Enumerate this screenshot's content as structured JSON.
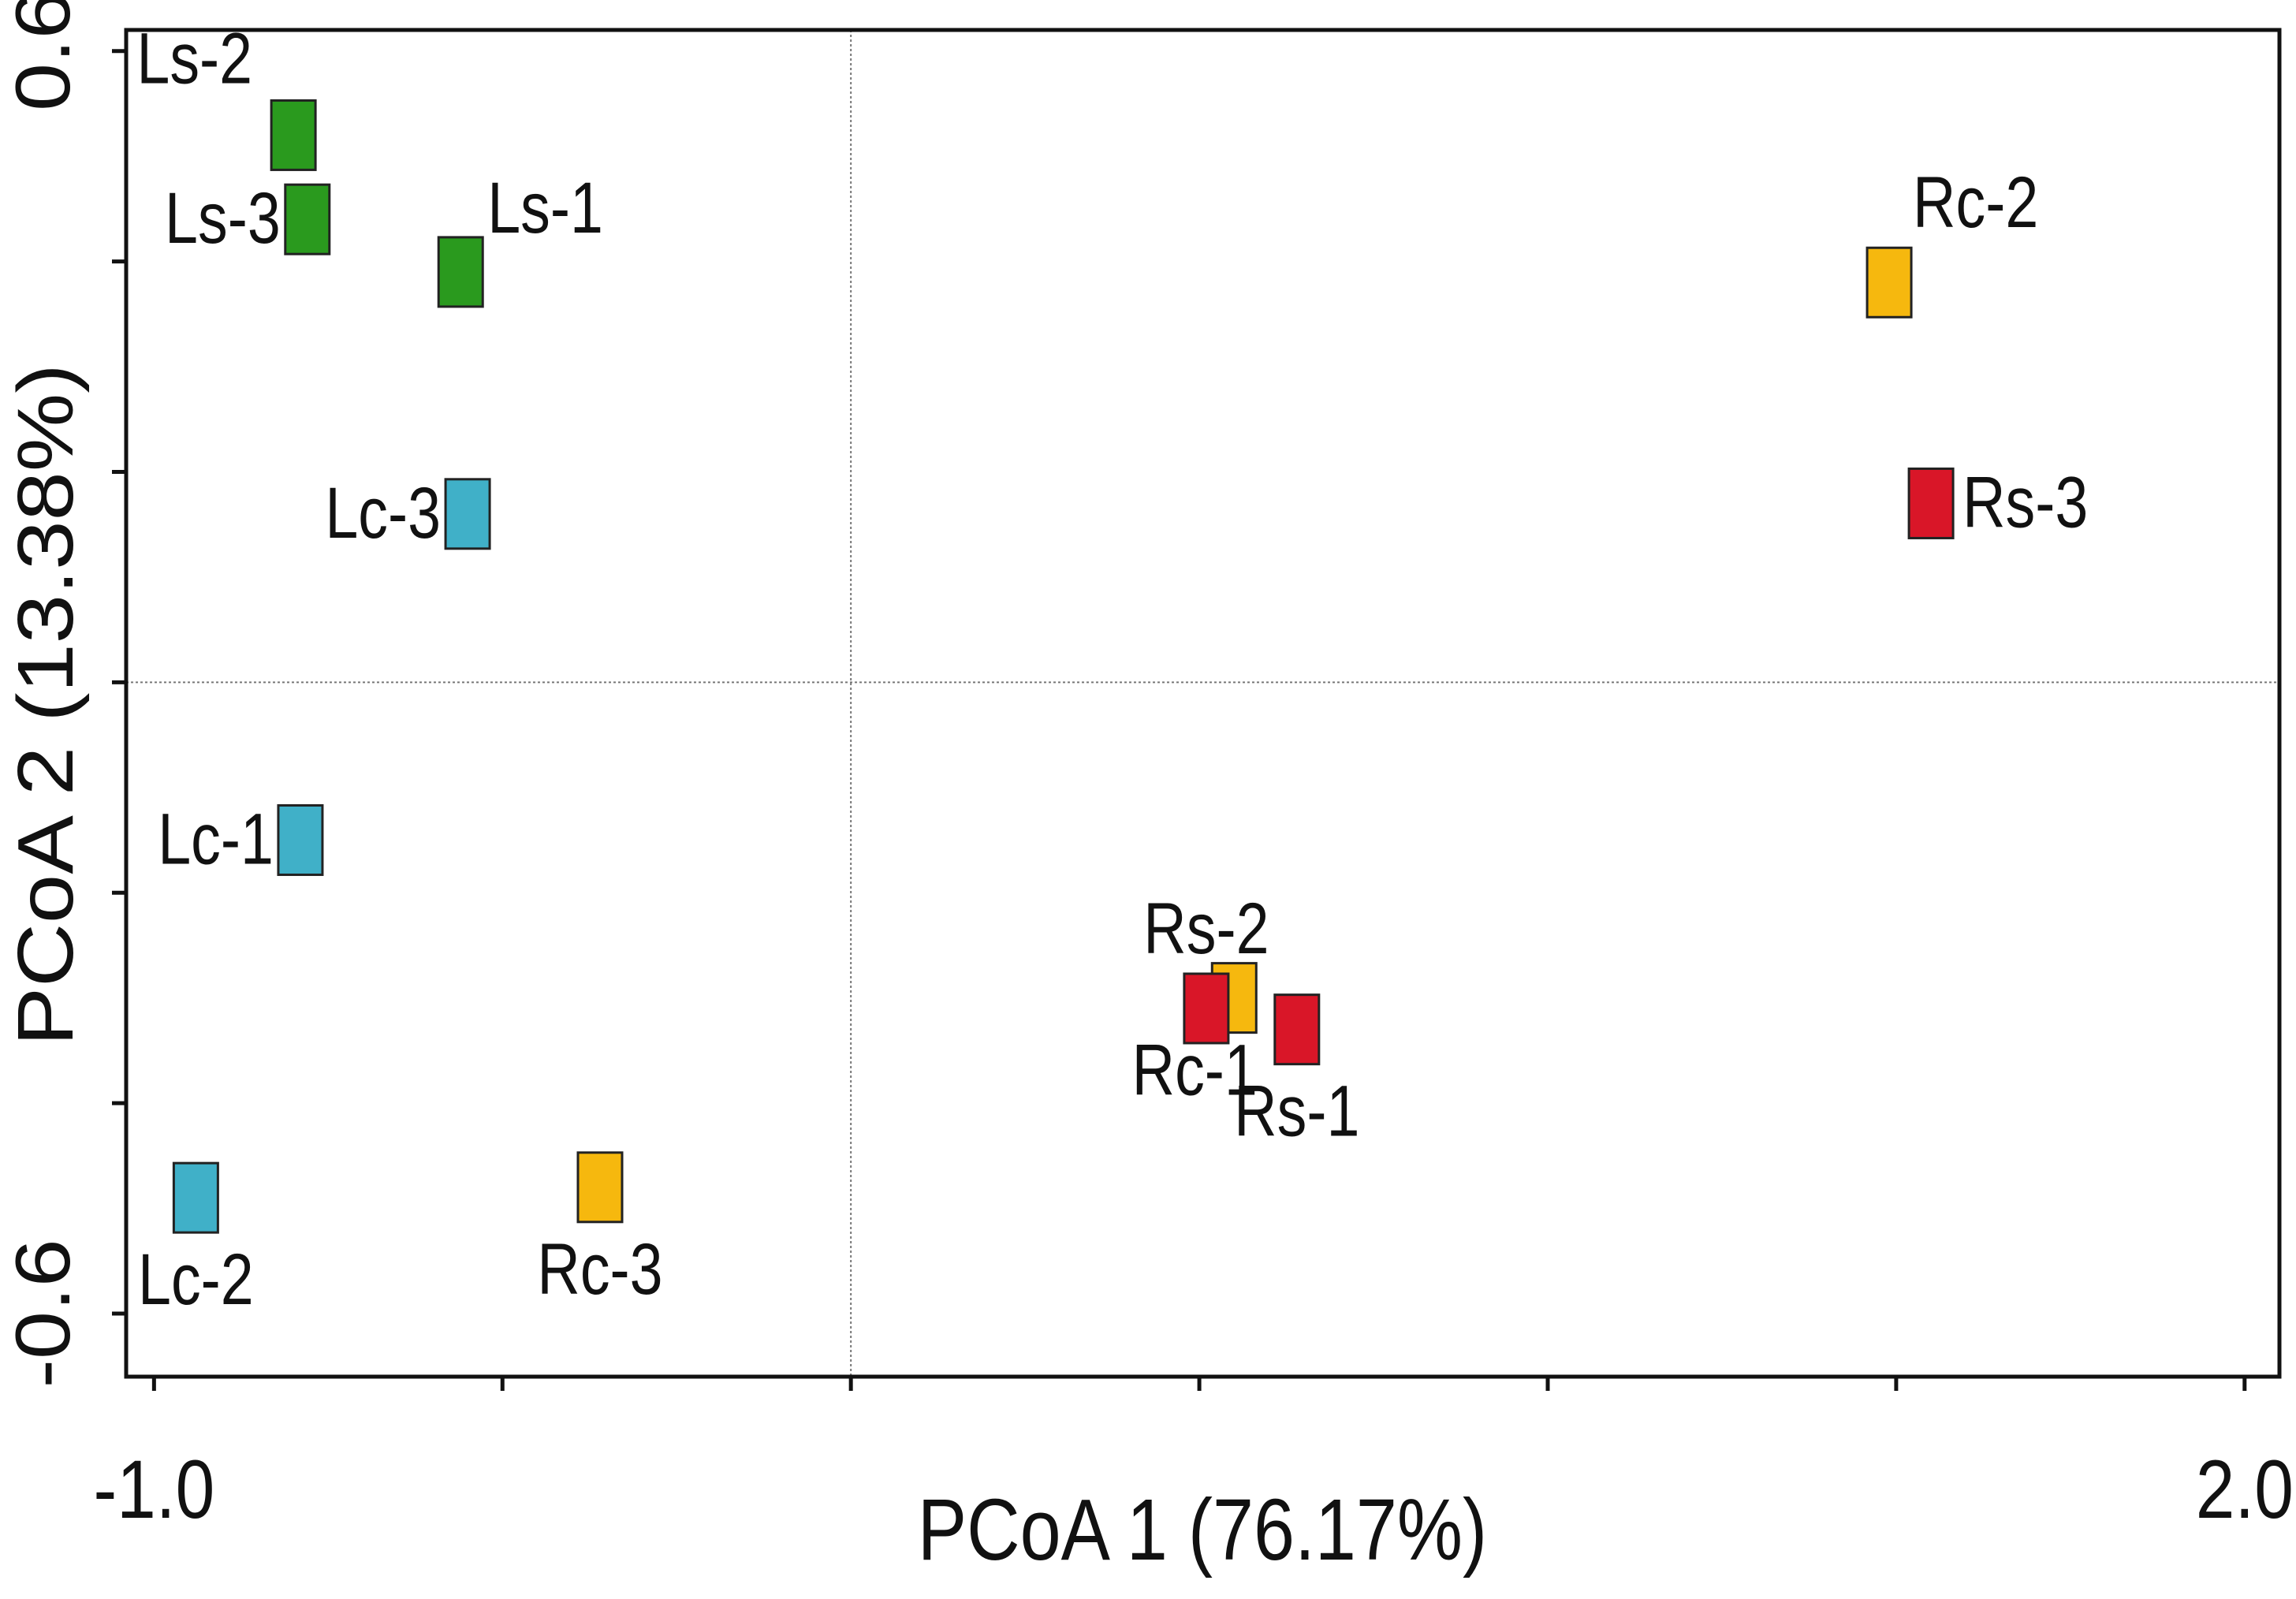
{
  "chart_data": {
    "type": "scatter",
    "title": "",
    "xlabel": "PCoA 1 (76.17%)",
    "ylabel": "PCoA 2 (13.38%)",
    "xlim": [
      -1.04,
      2.05
    ],
    "ylim": [
      -0.66,
      0.62
    ],
    "x_ticks": [
      -1.0,
      -0.5,
      0.0,
      0.5,
      1.0,
      1.5,
      2.0
    ],
    "x_tick_labels": [
      {
        "value": -1.0,
        "label": "-1.0"
      },
      {
        "value": 2.0,
        "label": "2.0"
      }
    ],
    "y_ticks": [
      -0.6,
      -0.4,
      -0.2,
      0.0,
      0.2,
      0.4,
      0.6
    ],
    "y_tick_labels": [
      {
        "value": -0.6,
        "label": "-0.6"
      },
      {
        "value": 0.6,
        "label": "0.6"
      }
    ],
    "reference_lines": {
      "x": 0.0,
      "y": 0.0,
      "style": "dotted"
    },
    "grid": false,
    "legend": "none",
    "series": [
      {
        "name": "Ls",
        "color": "#2a9a1e",
        "points": [
          {
            "label": "Ls-2",
            "x": -0.8,
            "y": 0.52,
            "label_pos": "above-left"
          },
          {
            "label": "Ls-3",
            "x": -0.78,
            "y": 0.44,
            "label_pos": "left"
          },
          {
            "label": "Ls-1",
            "x": -0.56,
            "y": 0.39,
            "label_pos": "upper-right"
          }
        ]
      },
      {
        "name": "Lc",
        "color": "#40b0c8",
        "points": [
          {
            "label": "Lc-3",
            "x": -0.55,
            "y": 0.16,
            "label_pos": "left"
          },
          {
            "label": "Lc-1",
            "x": -0.79,
            "y": -0.15,
            "label_pos": "left"
          },
          {
            "label": "Lc-2",
            "x": -0.94,
            "y": -0.49,
            "label_pos": "below"
          }
        ]
      },
      {
        "name": "Rc",
        "color": "#f6b80e",
        "points": [
          {
            "label": "Rc-2",
            "x": 1.49,
            "y": 0.38,
            "label_pos": "above-right"
          },
          {
            "label": "Rc-1",
            "x": 0.55,
            "y": -0.3,
            "label_pos": "below-left"
          },
          {
            "label": "Rc-3",
            "x": -0.36,
            "y": -0.48,
            "label_pos": "below"
          }
        ]
      },
      {
        "name": "Rs",
        "color": "#d91628",
        "points": [
          {
            "label": "Rs-3",
            "x": 1.55,
            "y": 0.17,
            "label_pos": "right"
          },
          {
            "label": "Rs-2",
            "x": 0.51,
            "y": -0.31,
            "label_pos": "above"
          },
          {
            "label": "Rs-1",
            "x": 0.64,
            "y": -0.33,
            "label_pos": "below"
          }
        ]
      }
    ]
  }
}
